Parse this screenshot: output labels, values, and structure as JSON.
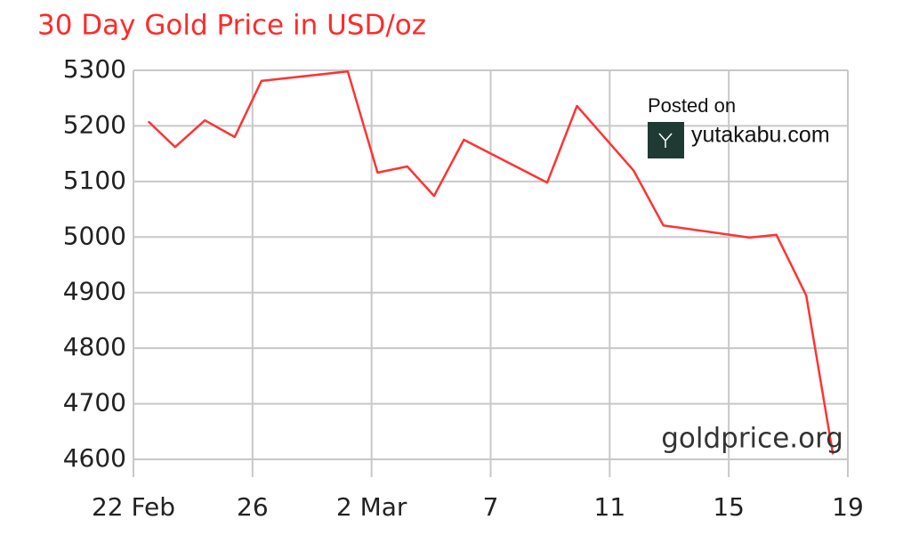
{
  "chart_data": {
    "type": "line",
    "title": "30 Day Gold Price in USD/oz",
    "x": [
      0.5,
      1.4,
      2.4,
      3.4,
      4.3,
      7.2,
      8.2,
      9.2,
      10.1,
      11.1,
      13.9,
      14.9,
      16.8,
      17.8,
      20.7,
      21.6,
      22.6,
      23.5
    ],
    "values": [
      5208,
      5162,
      5210,
      5180,
      5281,
      5298,
      5116,
      5127,
      5074,
      5175,
      5098,
      5236,
      5120,
      5021,
      4999,
      5004,
      4895,
      4609
    ],
    "color": "#ff3333",
    "xlim": [
      0,
      24
    ],
    "xticks": [
      {
        "value": 0,
        "label": "22 Feb"
      },
      {
        "value": 4,
        "label": "26"
      },
      {
        "value": 8,
        "label": "2 Mar"
      },
      {
        "value": 12,
        "label": "7"
      },
      {
        "value": 16,
        "label": "11"
      },
      {
        "value": 20,
        "label": "15"
      },
      {
        "value": 24,
        "label": "19"
      }
    ],
    "ylim": [
      4600,
      5300
    ],
    "yticks": [
      4600,
      4700,
      4800,
      4900,
      5000,
      5100,
      5200,
      5300
    ],
    "grid": true,
    "source": "goldprice.org",
    "watermark": {
      "line1": "Posted on",
      "line2": "yutakabu.com"
    }
  }
}
